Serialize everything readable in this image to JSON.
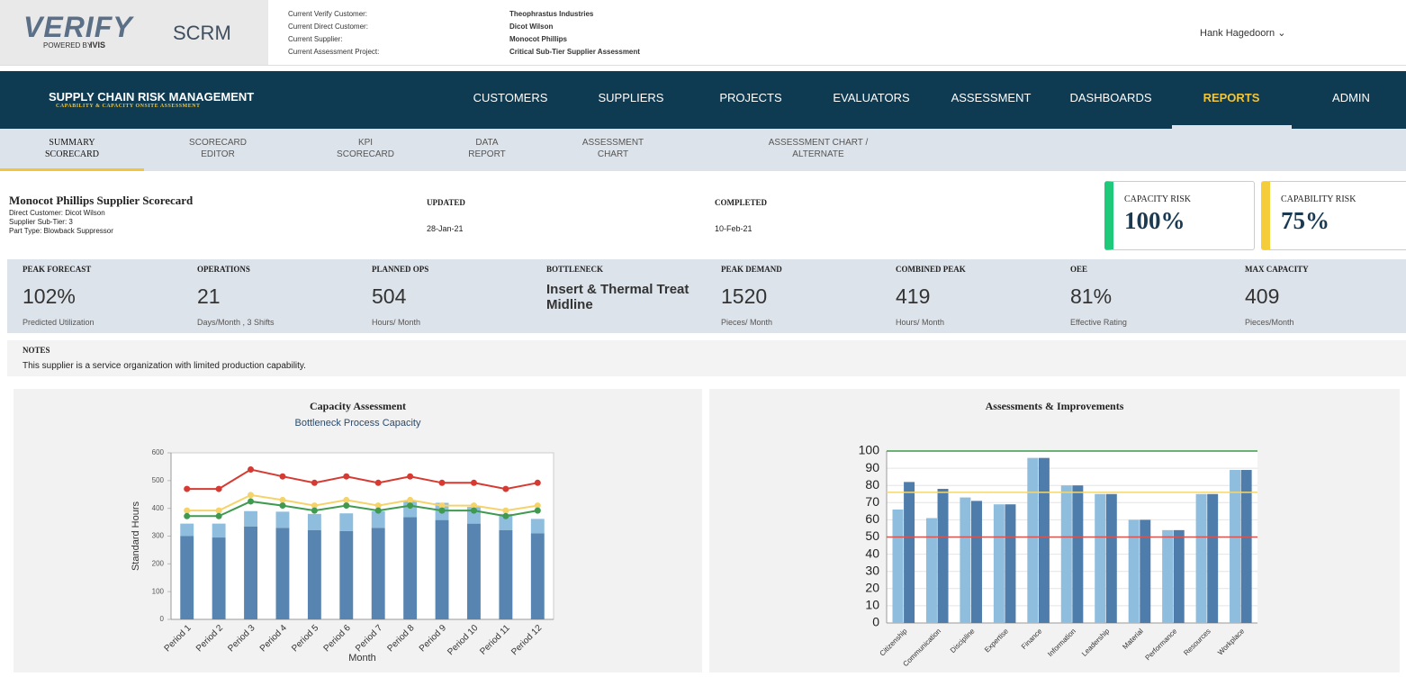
{
  "header": {
    "logo": "VERIFY",
    "logo_tagline": "POWERED BY",
    "logo_brand": "IVIS",
    "app": "SCRM",
    "context": [
      {
        "label": "Current Verify Customer:",
        "value": "Theophrastus Industries"
      },
      {
        "label": "Current Direct Customer:",
        "value": "Dicot Wilson"
      },
      {
        "label": "Current Supplier:",
        "value": "Monocot Phillips"
      },
      {
        "label": "Current Assessment Project:",
        "value": "Critical Sub-Tier Supplier Assessment"
      }
    ],
    "user": "Hank Hagedoorn"
  },
  "nav": {
    "title": "SUPPLY CHAIN RISK MANAGEMENT",
    "subtitle": "CAPABILITY & CAPACITY ONSITE ASSESSMENT",
    "items": [
      "CUSTOMERS",
      "SUPPLIERS",
      "PROJECTS",
      "EVALUATORS",
      "ASSESSMENT",
      "DASHBOARDS",
      "REPORTS",
      "ADMIN"
    ],
    "active": 6
  },
  "tabs": {
    "items": [
      [
        "SUMMARY",
        "SCORECARD"
      ],
      [
        "SCORECARD",
        "EDITOR"
      ],
      [
        "KPI",
        "SCORECARD"
      ],
      [
        "DATA",
        "REPORT"
      ],
      [
        "ASSESSMENT",
        "CHART"
      ],
      [
        "ASSESSMENT CHART /",
        "ALTERNATE"
      ]
    ],
    "active": 0
  },
  "scorecard": {
    "title": "Monocot Phillips Supplier Scorecard",
    "details": [
      "Direct Customer: Dicot Wilson",
      "Supplier Sub-Tier: 3",
      "Part Type: Blowback Suppressor"
    ],
    "updated": {
      "label": "UPDATED",
      "value": "28-Jan-21"
    },
    "completed": {
      "label": "COMPLETED",
      "value": "10-Feb-21"
    },
    "risks": [
      {
        "label": "CAPACITY RISK",
        "value": "100%",
        "color": "#1ec97a"
      },
      {
        "label": "CAPABILITY RISK",
        "value": "75%",
        "color": "#f5cd3a"
      }
    ]
  },
  "metrics": [
    {
      "label": "PEAK FORECAST",
      "value": "102%",
      "note": "Predicted Utilization"
    },
    {
      "label": "OPERATIONS",
      "value": "21",
      "note": "Days/Month , 3 Shifts"
    },
    {
      "label": "PLANNED OPS",
      "value": "504",
      "note": "Hours/ Month"
    },
    {
      "label": "BOTTLENECK",
      "value": [
        "Insert & Thermal Treat",
        "Midline"
      ]
    },
    {
      "label": "PEAK DEMAND",
      "value": "1520",
      "note": "Pieces/ Month"
    },
    {
      "label": "COMBINED PEAK",
      "value": "419",
      "note": "Hours/ Month"
    },
    {
      "label": "OEE",
      "value": "81%",
      "note": "Effective Rating"
    },
    {
      "label": "MAX CAPACITY",
      "value": "409",
      "note": "Pieces/Month"
    }
  ],
  "notes": {
    "label": "NOTES",
    "text": "This supplier is a service organization with limited production capability."
  },
  "chart_data": [
    {
      "type": "bar",
      "stacked": true,
      "title": "Capacity Assessment",
      "subtitle": "Bottleneck Process Capacity",
      "x_label": "Month",
      "y_label": "Standard Hours",
      "categories": [
        "Period 1",
        "Period 2",
        "Period 3",
        "Period 4",
        "Period 5",
        "Period 6",
        "Period 7",
        "Period 8",
        "Period 9",
        "Period 10",
        "Period 11",
        "Period 12"
      ],
      "series": [
        {
          "type": "bar",
          "color": "#5784b0",
          "values": [
            300,
            295,
            335,
            330,
            322,
            318,
            330,
            368,
            358,
            345,
            322,
            310
          ]
        },
        {
          "type": "bar",
          "color": "#8ebddd",
          "values": [
            45,
            50,
            55,
            58,
            58,
            64,
            60,
            57,
            62,
            60,
            58,
            52
          ]
        },
        {
          "type": "line",
          "color": "#d63a32",
          "values": [
            470,
            470,
            540,
            515,
            492,
            515,
            492,
            515,
            492,
            492,
            470,
            492
          ]
        },
        {
          "type": "line",
          "color": "#f5d36a",
          "values": [
            392,
            392,
            448,
            430,
            410,
            430,
            410,
            430,
            410,
            410,
            392,
            410
          ]
        },
        {
          "type": "line",
          "color": "#3f9a50",
          "values": [
            372,
            372,
            425,
            410,
            392,
            410,
            392,
            410,
            392,
            392,
            372,
            392
          ]
        }
      ],
      "ylim": [
        0,
        600
      ],
      "yticks": [
        0,
        100,
        200,
        300,
        400,
        500,
        600
      ],
      "grid": false
    },
    {
      "type": "bar",
      "stacked": false,
      "title": "Assessments & Improvements",
      "categories": [
        "Citizenship",
        "Communication",
        "Discipline",
        "Expertise",
        "Finance",
        "Information",
        "Leadership",
        "Material",
        "Performance",
        "Resources",
        "Workplace"
      ],
      "series": [
        {
          "type": "bar",
          "color": "#8ebddd",
          "values": [
            66,
            61,
            73,
            69,
            96,
            80,
            75,
            60,
            54,
            75,
            89
          ]
        },
        {
          "type": "bar",
          "color": "#4f7dab",
          "values": [
            82,
            78,
            71,
            69,
            96,
            80,
            75,
            60,
            54,
            75,
            89
          ]
        }
      ],
      "reference_lines": [
        {
          "value": 100,
          "color": "#3a9a4a"
        },
        {
          "value": 76,
          "color": "#f5d76e"
        },
        {
          "value": 50,
          "color": "#d9534f"
        }
      ],
      "ylim": [
        0,
        100
      ],
      "yticks": [
        0,
        10,
        20,
        30,
        40,
        50,
        60,
        70,
        80,
        90,
        100
      ],
      "grid": true
    }
  ]
}
